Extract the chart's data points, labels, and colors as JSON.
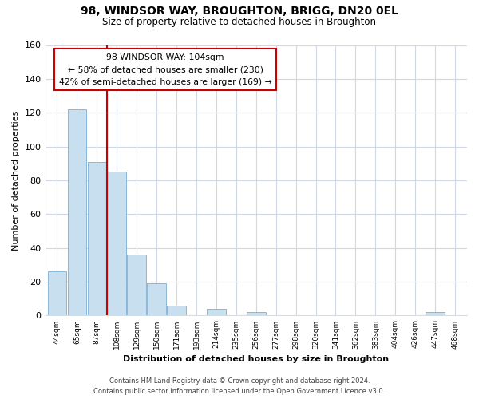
{
  "title": "98, WINDSOR WAY, BROUGHTON, BRIGG, DN20 0EL",
  "subtitle": "Size of property relative to detached houses in Broughton",
  "xlabel": "Distribution of detached houses by size in Broughton",
  "ylabel": "Number of detached properties",
  "bin_labels": [
    "44sqm",
    "65sqm",
    "87sqm",
    "108sqm",
    "129sqm",
    "150sqm",
    "171sqm",
    "193sqm",
    "214sqm",
    "235sqm",
    "256sqm",
    "277sqm",
    "298sqm",
    "320sqm",
    "341sqm",
    "362sqm",
    "383sqm",
    "404sqm",
    "426sqm",
    "447sqm",
    "468sqm"
  ],
  "bar_heights": [
    26,
    122,
    91,
    85,
    36,
    19,
    6,
    0,
    4,
    0,
    2,
    0,
    0,
    0,
    0,
    0,
    0,
    0,
    0,
    2,
    0
  ],
  "bar_color": "#c8dff0",
  "bar_edge_color": "#7bafd4",
  "ylim": [
    0,
    160
  ],
  "yticks": [
    0,
    20,
    40,
    60,
    80,
    100,
    120,
    140,
    160
  ],
  "property_line_color": "#cc0000",
  "annotation_title": "98 WINDSOR WAY: 104sqm",
  "annotation_line1": "← 58% of detached houses are smaller (230)",
  "annotation_line2": "42% of semi-detached houses are larger (169) →",
  "footer_line1": "Contains HM Land Registry data © Crown copyright and database right 2024.",
  "footer_line2": "Contains public sector information licensed under the Open Government Licence v3.0.",
  "plot_background": "#ffffff",
  "grid_color": "#d0d8e8"
}
